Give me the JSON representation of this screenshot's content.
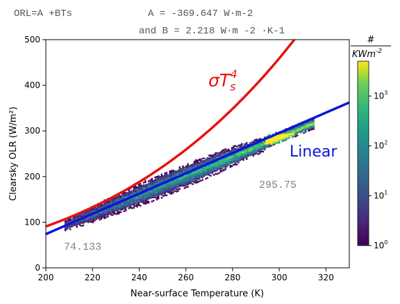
{
  "header": {
    "line1_left": "ORL=A +BTs",
    "line1_right": "A = -369.647 W·m-2",
    "line2": "and B = 2.218 W·m -2 ·K-1"
  },
  "chart_data": {
    "type": "heatmap",
    "title": "",
    "xlabel": "Near-surface Temperature (K)",
    "ylabel": "Clearsky OLR (W/m²)",
    "xlim": [
      200,
      330
    ],
    "ylim": [
      0,
      500
    ],
    "xticks": [
      200,
      220,
      240,
      260,
      280,
      300,
      320
    ],
    "yticks": [
      0,
      100,
      200,
      300,
      400,
      500
    ],
    "colorbar": {
      "label_num": "#",
      "label_den": "KWm",
      "label_den_exp": "-2",
      "scale": "log",
      "range": [
        1,
        5000
      ],
      "ticks": [
        1,
        10,
        100,
        1000
      ],
      "colormap": "viridis"
    },
    "density": {
      "x_range": [
        208,
        315
      ],
      "spine_start_y": 95,
      "spine_end_y": 320,
      "peak_x": 300,
      "peak_y": 285
    },
    "curves": [
      {
        "label": "σT",
        "label_sub": "s",
        "label_sup": "4",
        "kind": "stefan-boltzmann",
        "color": "#e8120c"
      },
      {
        "label": "Linear",
        "kind": "linear",
        "intercept": -369.647,
        "slope": 2.218,
        "color": "#0a14d9"
      }
    ],
    "annotations": [
      {
        "text": "74.133",
        "x": 210,
        "y": 40
      },
      {
        "text": "295.75",
        "x": 292,
        "y": 184
      }
    ],
    "grid": false
  },
  "colors": {
    "red_curve": "#e8120c",
    "blue_line": "#0a14d9",
    "annotation": "#808080"
  }
}
